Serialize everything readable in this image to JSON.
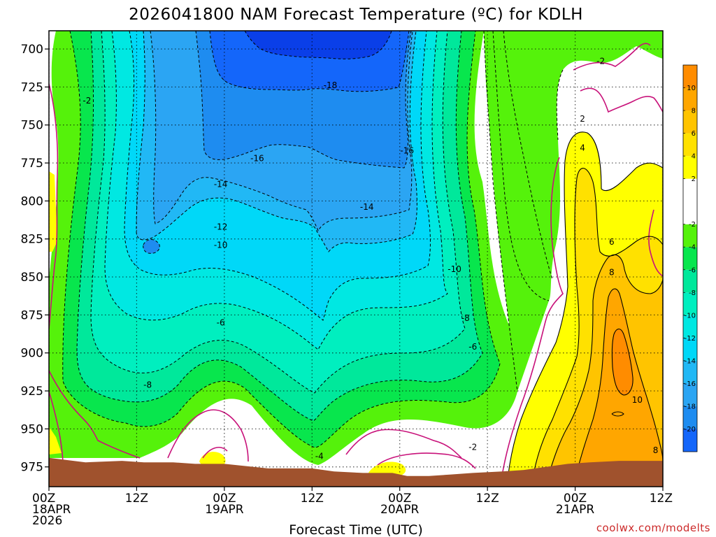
{
  "title": "2026041800 NAM Forecast Temperature (ºC) for KDLH",
  "credit": "coolwx.com/modelts",
  "chart_data": {
    "type": "time-height contour",
    "title": "2026041800 NAM Forecast Temperature (ºC) for KDLH",
    "xlabel": "Forecast Time (UTC)",
    "ylabel": "",
    "x_ticks": [
      {
        "hour": 0,
        "lines": [
          "00Z",
          "18APR",
          "2026"
        ]
      },
      {
        "hour": 12,
        "lines": [
          "12Z"
        ]
      },
      {
        "hour": 24,
        "lines": [
          "00Z",
          "19APR"
        ]
      },
      {
        "hour": 36,
        "lines": [
          "12Z"
        ]
      },
      {
        "hour": 48,
        "lines": [
          "00Z",
          "20APR"
        ]
      },
      {
        "hour": 60,
        "lines": [
          "12Z"
        ]
      },
      {
        "hour": 72,
        "lines": [
          "00Z",
          "21APR"
        ]
      },
      {
        "hour": 84,
        "lines": [
          "12Z"
        ]
      }
    ],
    "xlim": [
      0,
      84
    ],
    "y_ticks": [
      700,
      725,
      750,
      775,
      800,
      825,
      850,
      875,
      900,
      925,
      950,
      975
    ],
    "ylim": [
      688,
      988
    ],
    "grid": true,
    "colorbar": {
      "placement": "right",
      "labels": [
        "-20",
        "-18",
        "-16",
        "-14",
        "-12",
        "-10",
        "-8",
        "-6",
        "-4",
        "-2",
        "2",
        "4",
        "6",
        "8",
        "10"
      ],
      "bands": [
        {
          "from": -22,
          "to": -20,
          "color": "#1466fa"
        },
        {
          "from": -20,
          "to": -18,
          "color": "#1e8cf0"
        },
        {
          "from": -18,
          "to": -16,
          "color": "#2ba5f3"
        },
        {
          "from": -16,
          "to": -14,
          "color": "#21b8f5"
        },
        {
          "from": -14,
          "to": -12,
          "color": "#00d8f8"
        },
        {
          "from": -12,
          "to": -10,
          "color": "#00e8e2"
        },
        {
          "from": -10,
          "to": -8,
          "color": "#00efbf"
        },
        {
          "from": -8,
          "to": -6,
          "color": "#00e89b"
        },
        {
          "from": -6,
          "to": -4,
          "color": "#08e64d"
        },
        {
          "from": -4,
          "to": -2,
          "color": "#55f20b"
        },
        {
          "from": -2,
          "to": 2,
          "color": "#ffffff"
        },
        {
          "from": 2,
          "to": 4,
          "color": "#ffff00"
        },
        {
          "from": 4,
          "to": 6,
          "color": "#ffe100"
        },
        {
          "from": 6,
          "to": 8,
          "color": "#ffc400"
        },
        {
          "from": 8,
          "to": 10,
          "color": "#ffa600"
        },
        {
          "from": 10,
          "to": 12,
          "color": "#ff8c00"
        }
      ]
    },
    "terrain_color": "#a0522d",
    "zero_line_color": "#c8127a",
    "contour_labels": [
      {
        "text": "-2",
        "hour": 5.2,
        "p": 734
      },
      {
        "text": "-18",
        "hour": 38.5,
        "p": 724
      },
      {
        "text": "-16",
        "hour": 28.5,
        "p": 772
      },
      {
        "text": "-16",
        "hour": 49.0,
        "p": 767
      },
      {
        "text": "-14",
        "hour": 23.5,
        "p": 789
      },
      {
        "text": "-14",
        "hour": 43.5,
        "p": 804
      },
      {
        "text": "-12",
        "hour": 23.5,
        "p": 817
      },
      {
        "text": "-10",
        "hour": 23.5,
        "p": 829
      },
      {
        "text": "-10",
        "hour": 55.5,
        "p": 845
      },
      {
        "text": "-8",
        "hour": 57.0,
        "p": 877
      },
      {
        "text": "-6",
        "hour": 23.5,
        "p": 880
      },
      {
        "text": "-6",
        "hour": 58.0,
        "p": 896
      },
      {
        "text": "-8",
        "hour": 13.5,
        "p": 921
      },
      {
        "text": "-4",
        "hour": 37.0,
        "p": 968
      },
      {
        "text": "-2",
        "hour": 58.0,
        "p": 962
      },
      {
        "text": "-2",
        "hour": 75.5,
        "p": 708
      },
      {
        "text": "2",
        "hour": 73.0,
        "p": 746
      },
      {
        "text": "4",
        "hour": 73.0,
        "p": 765
      },
      {
        "text": "6",
        "hour": 77.0,
        "p": 827
      },
      {
        "text": "8",
        "hour": 77.0,
        "p": 847
      },
      {
        "text": "10",
        "hour": 80.5,
        "p": 931
      },
      {
        "text": "8",
        "hour": 83.0,
        "p": 964
      }
    ],
    "surface_pressure": [
      [
        0,
        969
      ],
      [
        5,
        972
      ],
      [
        10,
        971
      ],
      [
        13,
        972
      ],
      [
        17,
        972
      ],
      [
        20,
        973
      ],
      [
        24,
        973
      ],
      [
        30,
        976
      ],
      [
        36,
        976
      ],
      [
        39,
        978
      ],
      [
        43,
        979
      ],
      [
        47,
        979
      ],
      [
        49,
        981
      ],
      [
        52,
        981
      ],
      [
        55,
        980
      ],
      [
        58,
        979
      ],
      [
        62,
        978
      ],
      [
        65,
        977
      ],
      [
        68,
        975
      ],
      [
        71,
        973
      ],
      [
        74,
        972
      ],
      [
        78,
        971
      ],
      [
        81,
        971
      ],
      [
        84,
        971
      ]
    ]
  }
}
